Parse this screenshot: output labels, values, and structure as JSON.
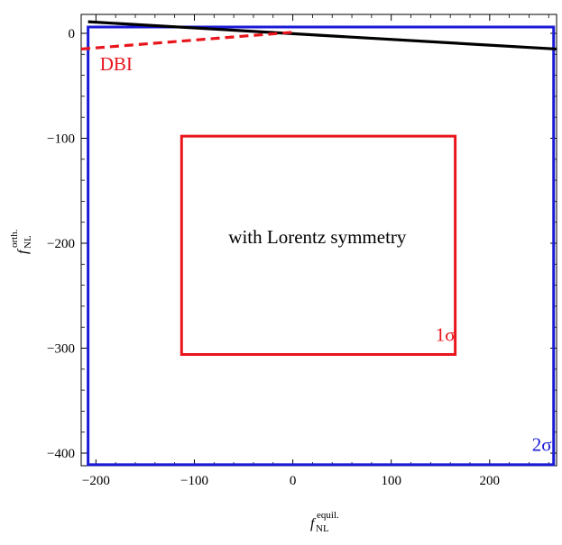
{
  "chart_data": {
    "type": "line",
    "xlim": [
      -215,
      268
    ],
    "ylim": [
      -412,
      18
    ],
    "x_ticks": [
      -200,
      -100,
      0,
      100,
      200
    ],
    "x_tick_labels": [
      "−200",
      "−100",
      "0",
      "100",
      "200"
    ],
    "y_ticks": [
      0,
      -100,
      -200,
      -300,
      -400
    ],
    "y_tick_labels": [
      "0",
      "−100",
      "−200",
      "−300",
      "−400"
    ],
    "xlabel": {
      "base": "f",
      "sub": "NL",
      "sup": "equil."
    },
    "ylabel": {
      "base": "f",
      "sub": "NL",
      "sup": "orth."
    },
    "grid": false,
    "series": [
      {
        "name": "",
        "color": "#000000",
        "style": "solid",
        "points": [
          [
            -208,
            11
          ],
          [
            268,
            -15
          ]
        ]
      },
      {
        "name": "DBI",
        "color": "#e8151c",
        "style": "dashed",
        "points": [
          [
            -215,
            -15
          ],
          [
            0,
            1
          ]
        ]
      }
    ],
    "regions": [
      {
        "name": "2σ",
        "color": "#1a1ad6",
        "x": [
          -208,
          265
        ],
        "y": [
          -411,
          6
        ]
      },
      {
        "name": "1σ",
        "color": "#e8151c",
        "x": [
          -113,
          165
        ],
        "y": [
          -306,
          -98
        ]
      }
    ],
    "annotations": [
      {
        "text": "DBI",
        "x": -196,
        "y": -35,
        "color": "#e8151c"
      },
      {
        "text": "with Lorentz symmetry",
        "x": 25,
        "y": -200,
        "color": "#000000"
      },
      {
        "text": "1σ",
        "x": 145,
        "y": -293,
        "color": "#e8151c"
      },
      {
        "text": "2σ",
        "x": 243,
        "y": -398,
        "color": "#1a1ad6"
      }
    ]
  }
}
